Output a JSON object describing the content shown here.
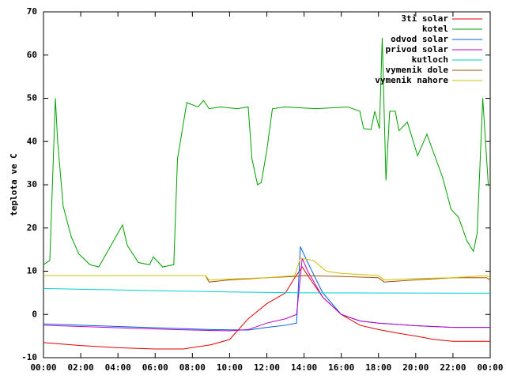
{
  "chart_data": {
    "type": "line",
    "ylabel": "teplota ve C",
    "xlim": [
      0,
      24
    ],
    "ylim": [
      -10,
      70
    ],
    "xticks": [
      {
        "value": 0,
        "label": "00:00"
      },
      {
        "value": 2,
        "label": "02:00"
      },
      {
        "value": 4,
        "label": "04:00"
      },
      {
        "value": 6,
        "label": "06:00"
      },
      {
        "value": 8,
        "label": "08:00"
      },
      {
        "value": 10,
        "label": "10:00"
      },
      {
        "value": 12,
        "label": "12:00"
      },
      {
        "value": 14,
        "label": "14:00"
      },
      {
        "value": 16,
        "label": "16:00"
      },
      {
        "value": 18,
        "label": "18:00"
      },
      {
        "value": 20,
        "label": "20:00"
      },
      {
        "value": 22,
        "label": "22:00"
      },
      {
        "value": 24,
        "label": "00:00"
      }
    ],
    "yticks": [
      -10,
      0,
      10,
      20,
      30,
      40,
      50,
      60,
      70
    ],
    "legend": "top-right",
    "series": [
      {
        "name": "3ti solar",
        "color": "#e00000",
        "x": [
          0,
          2,
          4,
          6,
          7.5,
          9,
          10,
          11,
          12,
          13,
          13.5,
          13.9,
          14.2,
          15,
          16,
          17,
          18,
          19,
          20,
          21,
          22,
          24
        ],
        "values": [
          -6.5,
          -7.2,
          -7.7,
          -8,
          -8,
          -7,
          -5.8,
          -1,
          2.5,
          5,
          8.5,
          11,
          9,
          4,
          0,
          -2.5,
          -3.5,
          -4.3,
          -5,
          -5.8,
          -6.2,
          -6.2
        ]
      },
      {
        "name": "kotel",
        "color": "#00a000",
        "x": [
          0,
          0.34,
          0.64,
          0.76,
          1.06,
          1.49,
          1.9,
          2.5,
          2.97,
          3.3,
          4.25,
          4.5,
          5.1,
          5.7,
          5.9,
          6.4,
          7.0,
          7.2,
          7.7,
          8.3,
          8.6,
          8.9,
          9.5,
          10.4,
          11.0,
          11.2,
          11.5,
          11.7,
          12.0,
          12.3,
          12.96,
          14.65,
          16.35,
          17.0,
          17.2,
          17.6,
          17.8,
          18.05,
          18.2,
          18.4,
          18.6,
          18.9,
          19.1,
          19.55,
          20.1,
          20.6,
          21.45,
          21.9,
          22.3,
          22.75,
          23.1,
          23.3,
          23.6,
          23.9,
          24
        ],
        "values": [
          11.5,
          12.5,
          50,
          40,
          25,
          18,
          14,
          11.5,
          11,
          13.5,
          20.7,
          16,
          12,
          11.5,
          13.3,
          11,
          11.5,
          36,
          49,
          48,
          49.5,
          47.6,
          48,
          47.6,
          48,
          36,
          30,
          30.5,
          38,
          47.6,
          48,
          47.6,
          48,
          47,
          43,
          42.8,
          47,
          43,
          64,
          31,
          47,
          47,
          42.5,
          44.5,
          36.7,
          41.7,
          31.6,
          24.3,
          22.5,
          17,
          14.6,
          18.8,
          50,
          29.8,
          30
        ]
      },
      {
        "name": "odvod solar",
        "color": "#0060e0",
        "x": [
          0,
          9,
          11,
          12,
          13,
          13.6,
          13.8,
          14.2,
          15,
          16,
          17,
          18,
          20,
          22,
          24
        ],
        "values": [
          -2.2,
          -3.5,
          -3.6,
          -3,
          -2.5,
          -2,
          15.7,
          12,
          5,
          0,
          -1.5,
          -2,
          -2.6,
          -3,
          -3
        ]
      },
      {
        "name": "privod solar",
        "color": "#c000c0",
        "x": [
          0,
          7,
          10,
          11,
          12,
          13,
          13.6,
          13.9,
          14.2,
          15,
          16,
          17,
          18,
          20,
          22,
          24
        ],
        "values": [
          -2.5,
          -3.5,
          -3.8,
          -3.5,
          -2,
          -1,
          0,
          13,
          10,
          4,
          0,
          -1.5,
          -2,
          -2.6,
          -3,
          -3
        ]
      },
      {
        "name": "kutloch",
        "color": "#00d0d0",
        "x": [
          0,
          6,
          10,
          14,
          24
        ],
        "values": [
          6,
          5.5,
          5.2,
          5,
          4.9
        ]
      },
      {
        "name": "vymenik dole",
        "color": "#a05000",
        "x": [
          0,
          8.7,
          8.9,
          10,
          12,
          13.5,
          14,
          16,
          18,
          18.3,
          20,
          22,
          23.8,
          24
        ],
        "values": [
          9,
          9,
          7.5,
          8,
          8.5,
          8.8,
          9,
          8.8,
          8.5,
          7.5,
          8,
          8.5,
          8.5,
          8
        ]
      },
      {
        "name": "vymenik nahore",
        "color": "#d0c000",
        "x": [
          0,
          8.7,
          8.9,
          10,
          12,
          13.5,
          13.8,
          14.5,
          15.2,
          16,
          18,
          18.3,
          20,
          22,
          23.8,
          24
        ],
        "values": [
          9,
          9,
          8,
          8.2,
          8.5,
          9,
          13,
          12.5,
          10,
          9.5,
          9,
          8,
          8.3,
          8.5,
          9,
          8.5
        ]
      }
    ]
  }
}
